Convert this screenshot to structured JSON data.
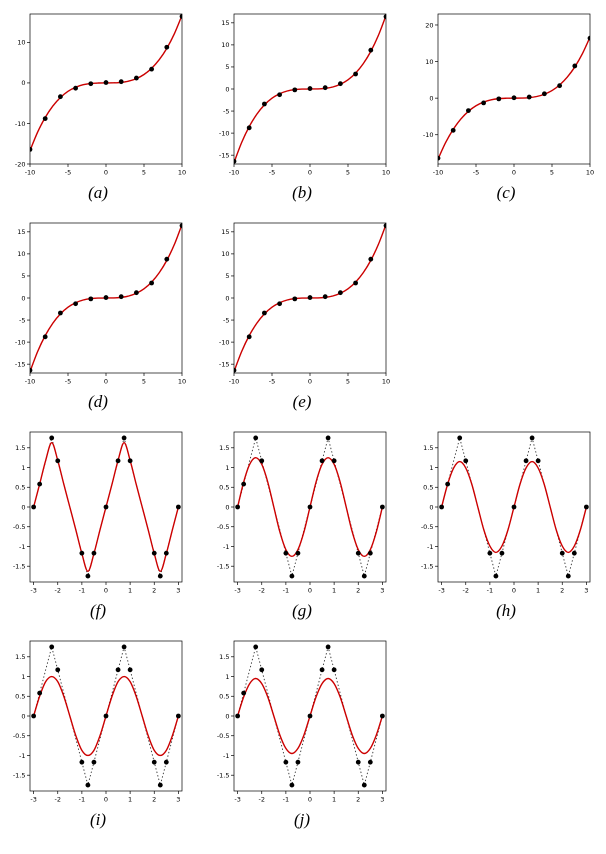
{
  "layout_hints": {
    "grid": false,
    "legend": "none",
    "background": "#ffffff"
  },
  "colors": {
    "true_curve": "#333333",
    "fitted_curve": "#cc0000",
    "points": "#000000"
  },
  "shared": {
    "cubic_x": [
      -10,
      -9,
      -8,
      -7,
      -6,
      -5,
      -4,
      -3,
      -2,
      -1,
      0,
      1,
      2,
      3,
      4,
      5,
      6,
      7,
      8,
      9,
      10
    ],
    "cubic_true": [
      -16.67,
      -12.15,
      -8.53,
      -5.72,
      -3.6,
      -2.08,
      -1.07,
      -0.45,
      -0.13,
      -0.02,
      0,
      0.02,
      0.13,
      0.45,
      1.07,
      2.08,
      3.6,
      5.72,
      8.53,
      12.15,
      16.67
    ],
    "cubic_pts_x": [
      -10,
      -8,
      -6,
      -4,
      -2,
      0,
      2,
      4,
      6,
      8,
      10
    ],
    "cubic_pts_y": [
      -16.4,
      -8.8,
      -3.4,
      -1.3,
      -0.2,
      0.1,
      0.3,
      1.2,
      3.4,
      8.8,
      16.4
    ],
    "saw_x": [
      -3,
      -2.75,
      -2.5,
      -2.25,
      -2,
      -1.75,
      -1.5,
      -1.25,
      -1,
      -0.75,
      -0.5,
      -0.25,
      0,
      0.25,
      0.5,
      0.75,
      1,
      1.25,
      1.5,
      1.75,
      2,
      2.25,
      2.5,
      2.75,
      3
    ],
    "saw_true": [
      0,
      0.58,
      1.17,
      1.75,
      1.17,
      0.58,
      0,
      -0.58,
      -1.17,
      -1.75,
      -1.17,
      -0.58,
      0,
      0.58,
      1.17,
      1.75,
      1.17,
      0.58,
      0,
      -0.58,
      -1.17,
      -1.75,
      -1.17,
      -0.58,
      0
    ],
    "saw_pts_x": [
      -3,
      -2.75,
      -2.25,
      -2,
      -1,
      -0.75,
      -0.5,
      0,
      0.5,
      0.75,
      1,
      2,
      2.25,
      2.5,
      3
    ],
    "saw_pts_y": [
      0,
      0.58,
      1.75,
      1.17,
      -1.17,
      -1.75,
      -1.17,
      0,
      1.17,
      1.75,
      1.17,
      -1.17,
      -1.75,
      -1.17,
      0
    ],
    "fit_f": [
      0,
      0.58,
      1.18,
      1.63,
      1.18,
      0.58,
      0,
      -0.58,
      -1.18,
      -1.63,
      -1.18,
      -0.58,
      0,
      0.58,
      1.18,
      1.63,
      1.18,
      0.58,
      0,
      -0.58,
      -1.18,
      -1.63,
      -1.18,
      -0.58,
      0
    ],
    "fit_g": [
      0,
      0.63,
      1.08,
      1.25,
      1.08,
      0.63,
      0,
      -0.63,
      -1.08,
      -1.25,
      -1.08,
      -0.63,
      0,
      0.63,
      1.08,
      1.25,
      1.08,
      0.63,
      0,
      -0.63,
      -1.08,
      -1.25,
      -1.08,
      -0.63,
      0
    ],
    "fit_h": [
      0,
      0.58,
      0.99,
      1.15,
      0.99,
      0.58,
      0,
      -0.58,
      -0.99,
      -1.15,
      -0.99,
      -0.58,
      0,
      0.58,
      0.99,
      1.15,
      0.99,
      0.58,
      0,
      -0.58,
      -0.99,
      -1.15,
      -0.99,
      -0.58,
      0
    ],
    "fit_i": [
      0,
      0.5,
      0.87,
      1,
      0.87,
      0.5,
      0,
      -0.5,
      -0.87,
      -1,
      -0.87,
      -0.5,
      0,
      0.5,
      0.87,
      1,
      0.87,
      0.5,
      0,
      -0.5,
      -0.87,
      -1,
      -0.87,
      -0.5,
      0
    ],
    "fit_j": [
      0,
      0.48,
      0.82,
      0.95,
      0.82,
      0.48,
      0,
      -0.48,
      -0.82,
      -0.95,
      -0.82,
      -0.48,
      0,
      0.48,
      0.82,
      0.95,
      0.82,
      0.48,
      0,
      -0.48,
      -0.82,
      -0.95,
      -0.82,
      -0.48,
      0
    ]
  },
  "chart_data": [
    {
      "label": "(a)",
      "type": "line",
      "xlim": [
        -10,
        10
      ],
      "ylim": [
        -20,
        17
      ],
      "x_ticks": [
        -10,
        -5,
        0,
        5,
        10
      ],
      "y_ticks": [
        -20,
        -10,
        0,
        10
      ],
      "series": [
        {
          "name": "true-curve",
          "style": "dotted",
          "color": "#333333",
          "x_ref": "cubic_x",
          "y_ref": "cubic_true"
        },
        {
          "name": "fitted-curve",
          "style": "solid",
          "color": "#cc0000",
          "x_ref": "cubic_x",
          "y_ref": "cubic_true"
        },
        {
          "name": "data-points",
          "style": "points",
          "color": "#000000",
          "x_ref": "cubic_pts_x",
          "y_ref": "cubic_pts_y"
        }
      ]
    },
    {
      "label": "(b)",
      "type": "line",
      "xlim": [
        -10,
        10
      ],
      "ylim": [
        -17,
        17
      ],
      "x_ticks": [
        -10,
        -5,
        0,
        5,
        10
      ],
      "y_ticks": [
        -15,
        -10,
        -5,
        0,
        5,
        10,
        15
      ],
      "series": [
        {
          "name": "true-curve",
          "style": "dotted",
          "color": "#333333",
          "x_ref": "cubic_x",
          "y_ref": "cubic_true"
        },
        {
          "name": "fitted-curve",
          "style": "solid",
          "color": "#cc0000",
          "x_ref": "cubic_x",
          "y_ref": "cubic_true"
        },
        {
          "name": "data-points",
          "style": "points",
          "color": "#000000",
          "x_ref": "cubic_pts_x",
          "y_ref": "cubic_pts_y"
        }
      ]
    },
    {
      "label": "(c)",
      "type": "line",
      "xlim": [
        -10,
        10
      ],
      "ylim": [
        -18,
        23
      ],
      "x_ticks": [
        -10,
        -5,
        0,
        5,
        10
      ],
      "y_ticks": [
        -10,
        0,
        10,
        20
      ],
      "series": [
        {
          "name": "true-curve",
          "style": "dotted",
          "color": "#333333",
          "x_ref": "cubic_x",
          "y_ref": "cubic_true"
        },
        {
          "name": "fitted-curve",
          "style": "solid",
          "color": "#cc0000",
          "x_ref": "cubic_x",
          "y_ref": "cubic_true"
        },
        {
          "name": "data-points",
          "style": "points",
          "color": "#000000",
          "x_ref": "cubic_pts_x",
          "y_ref": "cubic_pts_y"
        }
      ]
    },
    {
      "label": "(d)",
      "type": "line",
      "xlim": [
        -10,
        10
      ],
      "ylim": [
        -17,
        17
      ],
      "x_ticks": [
        -10,
        -5,
        0,
        5,
        10
      ],
      "y_ticks": [
        -15,
        -10,
        -5,
        0,
        5,
        10,
        15
      ],
      "series": [
        {
          "name": "true-curve",
          "style": "dotted",
          "color": "#333333",
          "x_ref": "cubic_x",
          "y_ref": "cubic_true"
        },
        {
          "name": "fitted-curve",
          "style": "solid",
          "color": "#cc0000",
          "x_ref": "cubic_x",
          "y_ref": "cubic_true"
        },
        {
          "name": "data-points",
          "style": "points",
          "color": "#000000",
          "x_ref": "cubic_pts_x",
          "y_ref": "cubic_pts_y"
        }
      ]
    },
    {
      "label": "(e)",
      "type": "line",
      "xlim": [
        -10,
        10
      ],
      "ylim": [
        -17,
        17
      ],
      "x_ticks": [
        -10,
        -5,
        0,
        5,
        10
      ],
      "y_ticks": [
        -15,
        -10,
        -5,
        0,
        5,
        10,
        15
      ],
      "series": [
        {
          "name": "true-curve",
          "style": "dotted",
          "color": "#333333",
          "x_ref": "cubic_x",
          "y_ref": "cubic_true"
        },
        {
          "name": "fitted-curve",
          "style": "solid",
          "color": "#cc0000",
          "x_ref": "cubic_x",
          "y_ref": "cubic_true"
        },
        {
          "name": "data-points",
          "style": "points",
          "color": "#000000",
          "x_ref": "cubic_pts_x",
          "y_ref": "cubic_pts_y"
        }
      ]
    },
    {
      "label": "(f)",
      "type": "line",
      "xlim": [
        -3.15,
        3.15
      ],
      "ylim": [
        -1.9,
        1.9
      ],
      "x_ticks": [
        -3,
        -2,
        -1,
        0,
        1,
        2,
        3
      ],
      "y_ticks": [
        -1.5,
        -1,
        -0.5,
        0,
        0.5,
        1,
        1.5
      ],
      "series": [
        {
          "name": "true-curve",
          "style": "dotted",
          "color": "#333333",
          "x_ref": "saw_x",
          "y_ref": "saw_true"
        },
        {
          "name": "fitted-curve",
          "style": "solid",
          "color": "#cc0000",
          "x_ref": "saw_x",
          "y_ref": "fit_f"
        },
        {
          "name": "data-points",
          "style": "points",
          "color": "#000000",
          "x_ref": "saw_pts_x",
          "y_ref": "saw_pts_y"
        }
      ]
    },
    {
      "label": "(g)",
      "type": "line",
      "xlim": [
        -3.15,
        3.15
      ],
      "ylim": [
        -1.9,
        1.9
      ],
      "x_ticks": [
        -3,
        -2,
        -1,
        0,
        1,
        2,
        3
      ],
      "y_ticks": [
        -1.5,
        -1,
        -0.5,
        0,
        0.5,
        1,
        1.5
      ],
      "series": [
        {
          "name": "true-curve",
          "style": "dotted",
          "color": "#333333",
          "x_ref": "saw_x",
          "y_ref": "saw_true"
        },
        {
          "name": "fitted-curve",
          "style": "solid",
          "color": "#cc0000",
          "x_ref": "saw_x",
          "y_ref": "fit_g"
        },
        {
          "name": "data-points",
          "style": "points",
          "color": "#000000",
          "x_ref": "saw_pts_x",
          "y_ref": "saw_pts_y"
        }
      ]
    },
    {
      "label": "(h)",
      "type": "line",
      "xlim": [
        -3.15,
        3.15
      ],
      "ylim": [
        -1.9,
        1.9
      ],
      "x_ticks": [
        -3,
        -2,
        -1,
        0,
        1,
        2,
        3
      ],
      "y_ticks": [
        -1.5,
        -1,
        -0.5,
        0,
        0.5,
        1,
        1.5
      ],
      "series": [
        {
          "name": "true-curve",
          "style": "dotted",
          "color": "#333333",
          "x_ref": "saw_x",
          "y_ref": "saw_true"
        },
        {
          "name": "fitted-curve",
          "style": "solid",
          "color": "#cc0000",
          "x_ref": "saw_x",
          "y_ref": "fit_h"
        },
        {
          "name": "data-points",
          "style": "points",
          "color": "#000000",
          "x_ref": "saw_pts_x",
          "y_ref": "saw_pts_y"
        }
      ]
    },
    {
      "label": "(i)",
      "type": "line",
      "xlim": [
        -3.15,
        3.15
      ],
      "ylim": [
        -1.9,
        1.9
      ],
      "x_ticks": [
        -3,
        -2,
        -1,
        0,
        1,
        2,
        3
      ],
      "y_ticks": [
        -1.5,
        -1,
        -0.5,
        0,
        0.5,
        1,
        1.5
      ],
      "series": [
        {
          "name": "true-curve",
          "style": "dotted",
          "color": "#333333",
          "x_ref": "saw_x",
          "y_ref": "saw_true"
        },
        {
          "name": "fitted-curve",
          "style": "solid",
          "color": "#cc0000",
          "x_ref": "saw_x",
          "y_ref": "fit_i"
        },
        {
          "name": "data-points",
          "style": "points",
          "color": "#000000",
          "x_ref": "saw_pts_x",
          "y_ref": "saw_pts_y"
        }
      ]
    },
    {
      "label": "(j)",
      "type": "line",
      "xlim": [
        -3.15,
        3.15
      ],
      "ylim": [
        -1.9,
        1.9
      ],
      "x_ticks": [
        -3,
        -2,
        -1,
        0,
        1,
        2,
        3
      ],
      "y_ticks": [
        -1.5,
        -1,
        -0.5,
        0,
        0.5,
        1,
        1.5
      ],
      "series": [
        {
          "name": "true-curve",
          "style": "dotted",
          "color": "#333333",
          "x_ref": "saw_x",
          "y_ref": "saw_true"
        },
        {
          "name": "fitted-curve",
          "style": "solid",
          "color": "#cc0000",
          "x_ref": "saw_x",
          "y_ref": "fit_j"
        },
        {
          "name": "data-points",
          "style": "points",
          "color": "#000000",
          "x_ref": "saw_pts_x",
          "y_ref": "saw_pts_y"
        }
      ]
    }
  ]
}
